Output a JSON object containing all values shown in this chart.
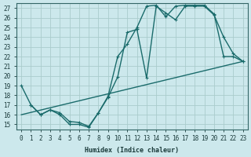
{
  "xlabel": "Humidex (Indice chaleur)",
  "background_color": "#cce8ec",
  "line_color": "#1a6b6b",
  "grid_color": "#aacccc",
  "xlim": [
    -0.5,
    23.5
  ],
  "ylim": [
    14.5,
    27.5
  ],
  "xticks": [
    0,
    1,
    2,
    3,
    4,
    5,
    6,
    7,
    8,
    9,
    10,
    11,
    12,
    13,
    14,
    15,
    16,
    17,
    18,
    19,
    20,
    21,
    22,
    23
  ],
  "yticks": [
    15,
    16,
    17,
    18,
    19,
    20,
    21,
    22,
    23,
    24,
    25,
    26,
    27
  ],
  "line1_x": [
    0,
    1,
    2,
    3,
    4,
    5,
    6,
    7,
    8,
    9,
    10,
    11,
    12,
    13,
    14,
    15,
    16,
    17,
    18,
    19,
    20,
    21,
    22,
    23
  ],
  "line1_y": [
    19,
    17,
    16,
    16.5,
    16,
    15,
    15,
    14.7,
    16.2,
    17.8,
    19.9,
    24.5,
    24.8,
    19.8,
    27.2,
    26.5,
    25.8,
    27.2,
    27.2,
    27.2,
    26.3,
    24.0,
    22.3,
    21.5
  ],
  "line2_x": [
    1,
    2,
    3,
    4,
    5,
    6,
    7,
    8,
    9,
    10,
    11,
    12,
    13,
    14,
    15,
    16,
    17,
    18,
    19,
    20,
    21,
    22,
    23
  ],
  "line2_y": [
    17,
    16,
    16.5,
    16.2,
    15.3,
    15.2,
    14.8,
    16.2,
    17.9,
    22.0,
    23.3,
    25.0,
    27.2,
    27.3,
    26.1,
    27.2,
    27.3,
    27.3,
    27.3,
    26.4,
    22.0,
    22.0,
    21.5
  ],
  "line3_x": [
    0,
    23
  ],
  "line3_y": [
    16.0,
    21.5
  ],
  "marker_size": 2.5,
  "linewidth": 1.0,
  "tick_fontsize": 5.5
}
